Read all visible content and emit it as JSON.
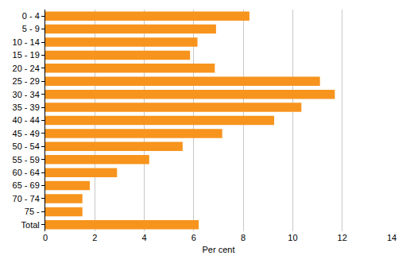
{
  "chart_data": {
    "type": "bar",
    "orientation": "horizontal",
    "categories": [
      "0 - 4",
      "5 - 9",
      "10 - 14",
      "15 - 19",
      "20 - 24",
      "25 - 29",
      "30 - 34",
      "35 - 39",
      "40 - 44",
      "45 - 49",
      "50 - 54",
      "55 - 59",
      "60 - 64",
      "65 - 69",
      "70 - 74",
      "75 -",
      "Total"
    ],
    "values": [
      8.25,
      6.9,
      6.15,
      5.85,
      6.85,
      11.1,
      11.7,
      10.35,
      9.25,
      7.15,
      5.55,
      4.2,
      2.9,
      1.8,
      1.5,
      1.5,
      6.2
    ],
    "color": "#f7941d",
    "x_label": "Per cent",
    "xlim": [
      0,
      14
    ],
    "xticks": [
      0,
      2,
      4,
      6,
      8,
      10,
      12,
      14
    ],
    "grid": true
  }
}
